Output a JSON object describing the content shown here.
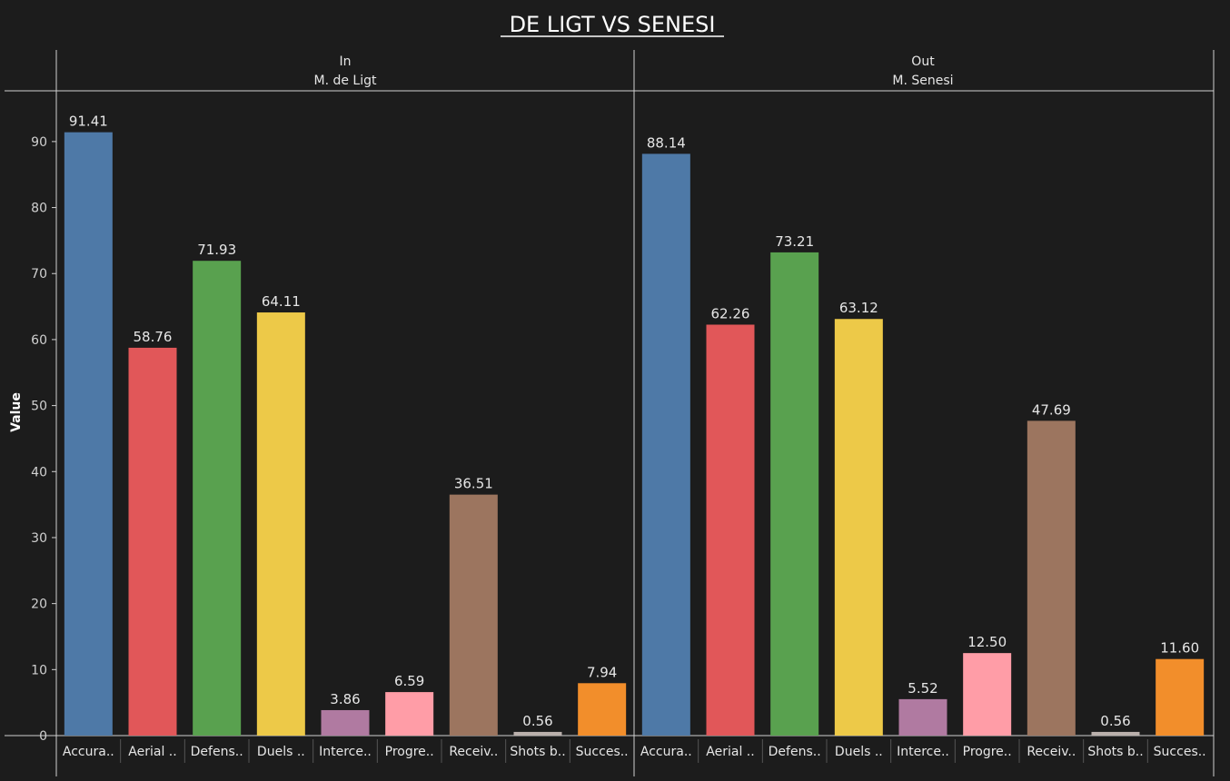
{
  "chart_data": {
    "type": "bar",
    "title": "DE LIGT VS SENESI",
    "ylabel": "Value",
    "ylim": [
      0,
      97
    ],
    "yticks": [
      0,
      10,
      20,
      30,
      40,
      50,
      60,
      70,
      80,
      90
    ],
    "grid": false,
    "categories": [
      "Accura..",
      "Aerial ..",
      "Defens..",
      "Duels ..",
      "Interce..",
      "Progre..",
      "Receiv..",
      "Shots b..",
      "Succes.."
    ],
    "colors": [
      "#4e79a7",
      "#e15759",
      "#59a14f",
      "#edc948",
      "#b07aa1",
      "#ff9da7",
      "#9c755f",
      "#bab0ac",
      "#f28e2b"
    ],
    "panes": [
      {
        "header": "In",
        "subheader": "M. de Ligt",
        "values": [
          91.41,
          58.76,
          71.93,
          64.11,
          3.86,
          6.59,
          36.51,
          0.56,
          7.94
        ],
        "value_labels": [
          "91.41",
          "58.76",
          "71.93",
          "64.11",
          "3.86",
          "6.59",
          "36.51",
          "0.56",
          "7.94"
        ]
      },
      {
        "header": "Out",
        "subheader": "M. Senesi",
        "values": [
          88.14,
          62.26,
          73.21,
          63.12,
          5.52,
          12.5,
          47.69,
          0.56,
          11.6
        ],
        "value_labels": [
          "88.14",
          "62.26",
          "73.21",
          "63.12",
          "5.52",
          "12.50",
          "47.69",
          "0.56",
          "11.60"
        ]
      }
    ]
  }
}
